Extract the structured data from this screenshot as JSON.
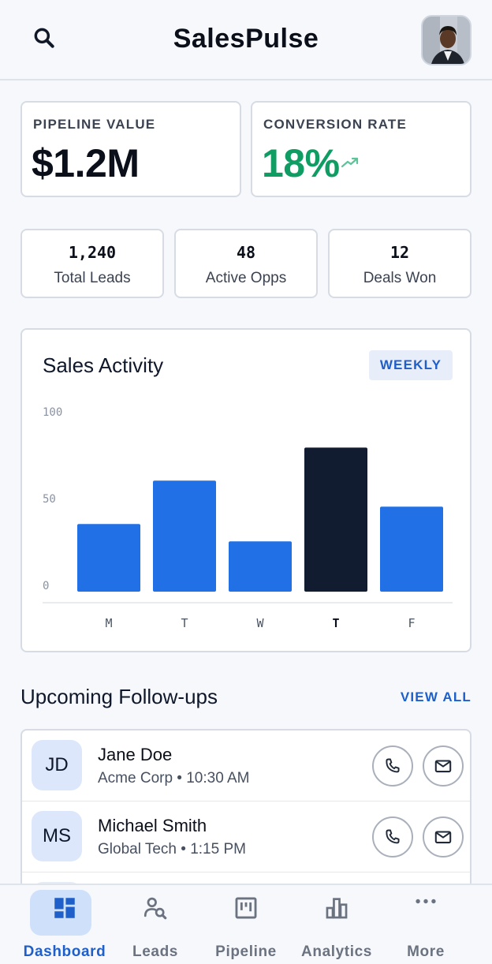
{
  "app": {
    "title": "SalesPulse"
  },
  "kpis": {
    "pipeline": {
      "label": "PIPELINE VALUE",
      "value": "$1.2M"
    },
    "conversion": {
      "label": "CONVERSION RATE",
      "value": "18%",
      "trend_icon": "trending-up-icon"
    }
  },
  "stats": [
    {
      "value": "1,240",
      "label": "Total Leads"
    },
    {
      "value": "48",
      "label": "Active Opps"
    },
    {
      "value": "12",
      "label": "Deals Won"
    }
  ],
  "activity": {
    "title": "Sales Activity",
    "range_button": "WEEKLY"
  },
  "chart_data": {
    "type": "bar",
    "categories": [
      "M",
      "T",
      "W",
      "T",
      "F"
    ],
    "values": [
      39,
      64,
      29,
      83,
      49
    ],
    "highlighted_index": 3,
    "ylim": [
      0,
      100
    ],
    "yticks": [
      "100",
      "50",
      "0"
    ],
    "colors": {
      "bar": "#2170e6",
      "highlight": "#111c30"
    },
    "grid": false
  },
  "followups": {
    "title": "Upcoming Follow-ups",
    "view_all": "VIEW ALL",
    "items": [
      {
        "initials": "JD",
        "name": "Jane Doe",
        "meta": "Acme Corp • 10:30 AM"
      },
      {
        "initials": "MS",
        "name": "Michael Smith",
        "meta": "Global Tech • 1:15 PM"
      }
    ]
  },
  "nav": [
    {
      "label": "Dashboard",
      "icon": "dashboard-icon",
      "active": true
    },
    {
      "label": "Leads",
      "icon": "leads-search-icon",
      "active": false
    },
    {
      "label": "Pipeline",
      "icon": "pipeline-icon",
      "active": false
    },
    {
      "label": "Analytics",
      "icon": "analytics-icon",
      "active": false
    },
    {
      "label": "More",
      "icon": "more-icon",
      "active": false
    }
  ]
}
